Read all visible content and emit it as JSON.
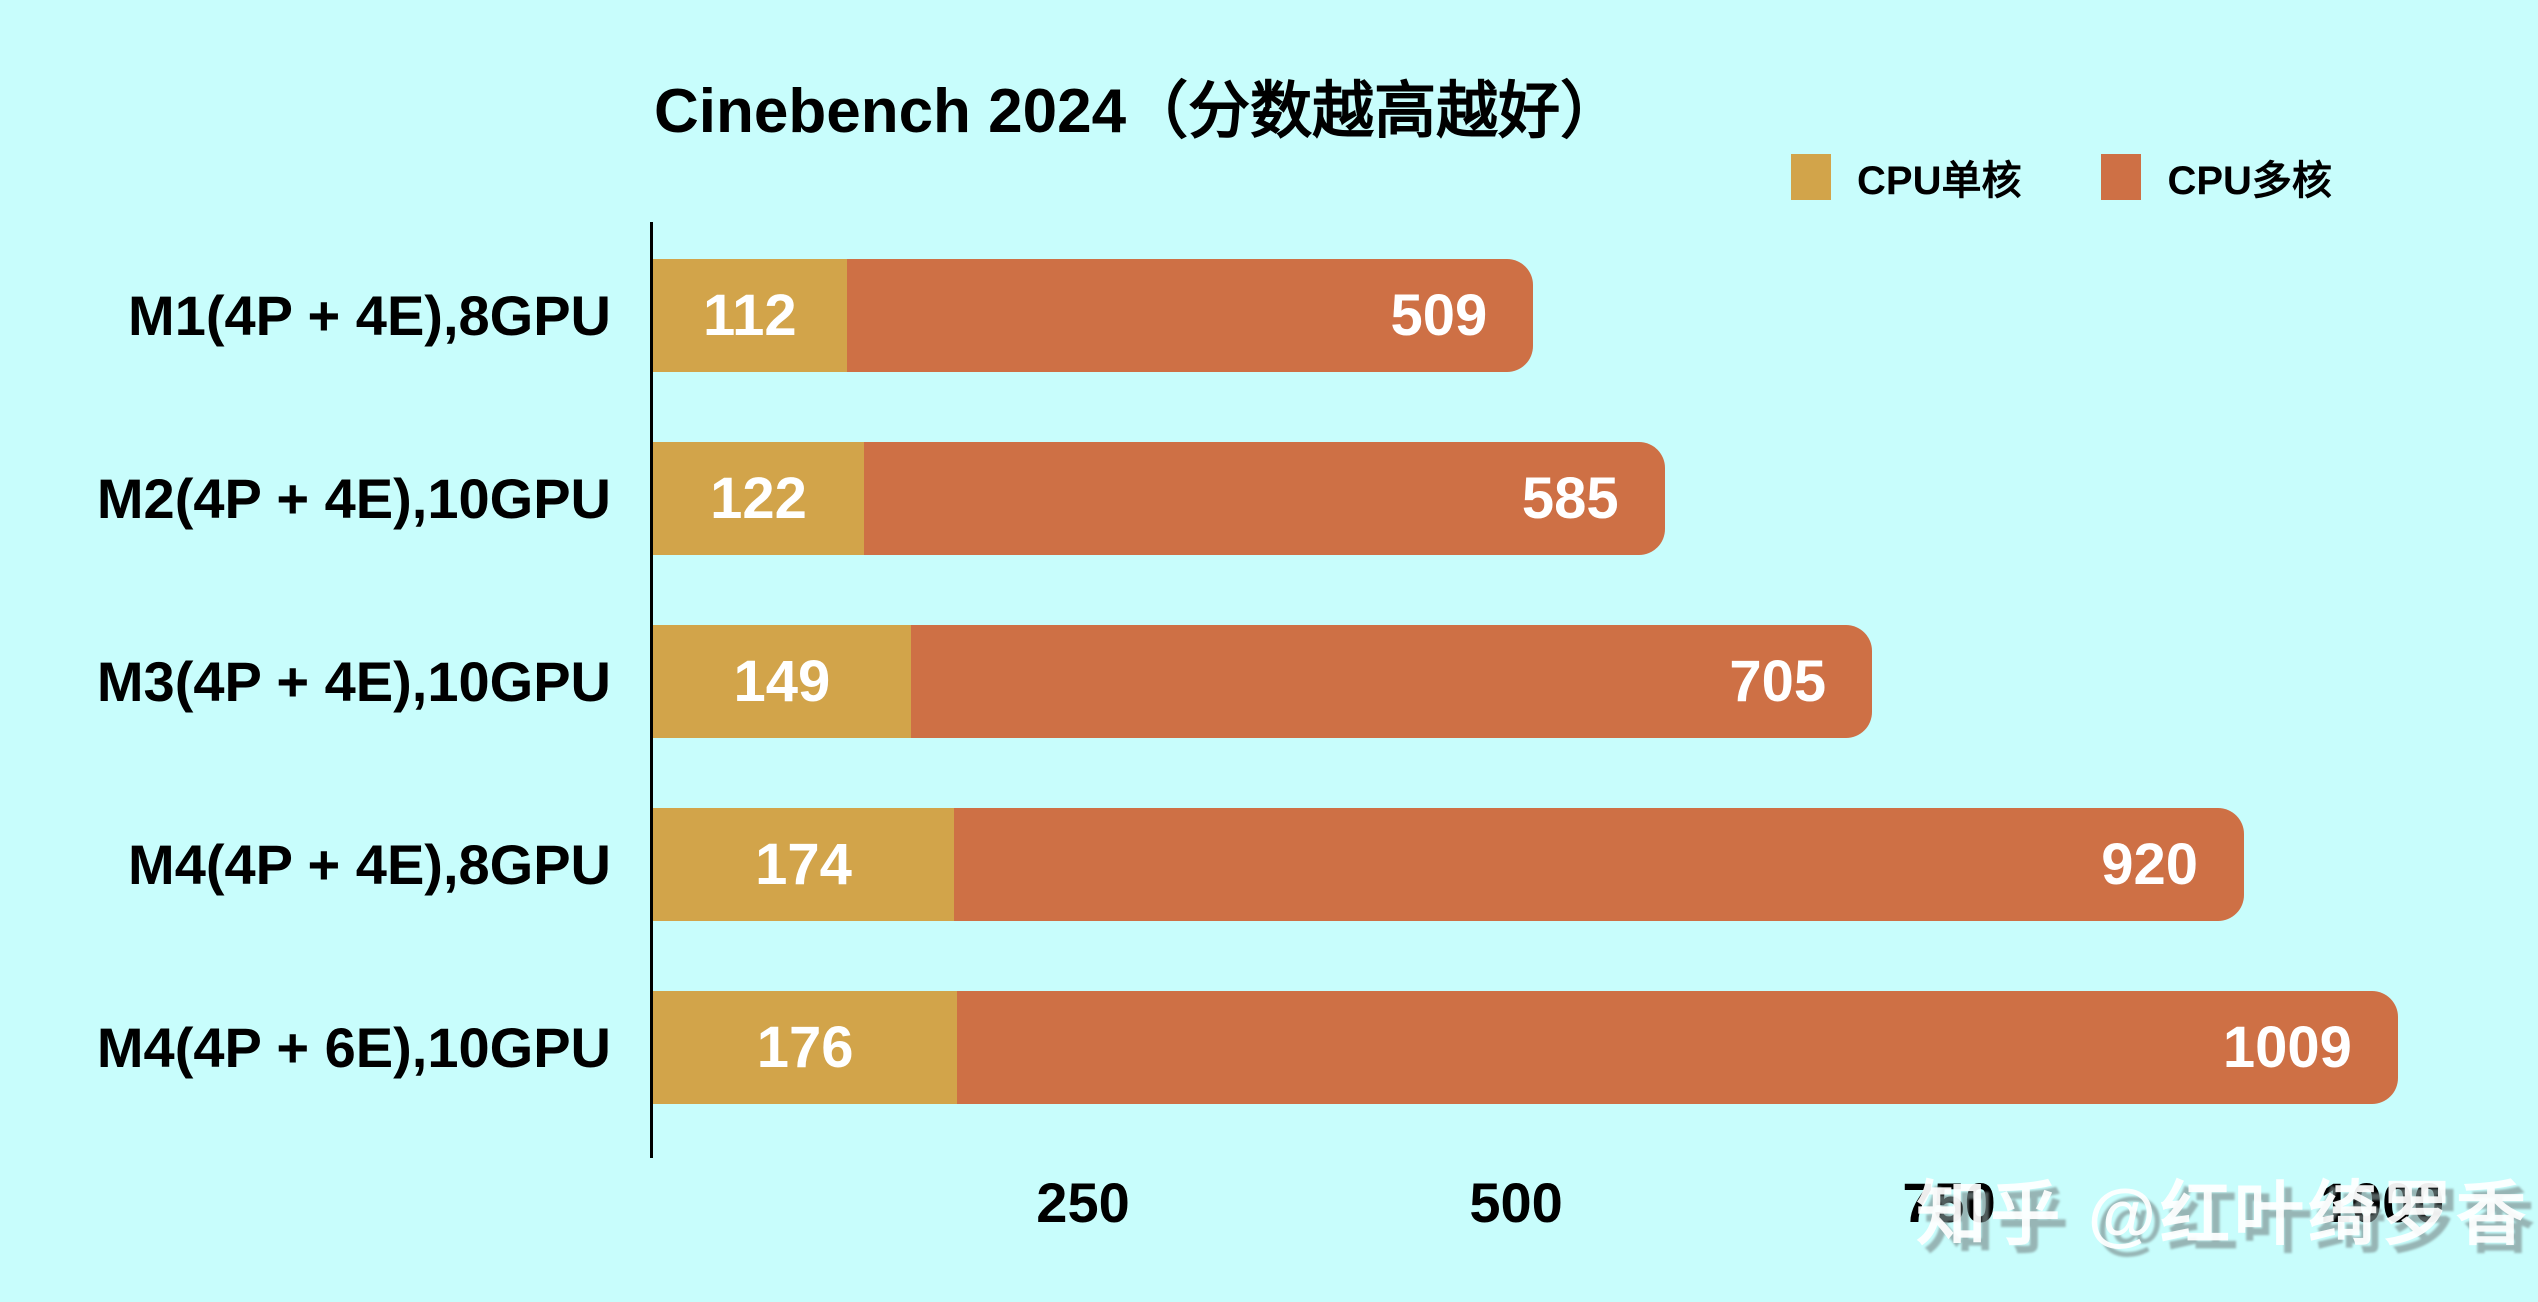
{
  "title": "Cinebench 2024（分数越高越好）",
  "legend": [
    {
      "label": "CPU单核",
      "color": "#D2A44A"
    },
    {
      "label": "CPU多核",
      "color": "#CE7045"
    }
  ],
  "chart_data": {
    "type": "bar",
    "orientation": "horizontal",
    "overlay": true,
    "title": "Cinebench 2024（分数越高越好）",
    "categories": [
      "M1(4P + 4E),8GPU",
      "M2(4P + 4E),10GPU",
      "M3(4P + 4E),10GPU",
      "M4(4P + 4E),8GPU",
      "M4(4P + 6E),10GPU"
    ],
    "series": [
      {
        "name": "CPU单核",
        "color": "#D2A44A",
        "values": [
          112,
          122,
          149,
          174,
          176
        ]
      },
      {
        "name": "CPU多核",
        "color": "#CE7045",
        "values": [
          509,
          585,
          705,
          920,
          1009
        ]
      }
    ],
    "xlabel": "",
    "ylabel": "",
    "xlim": [
      0,
      1090
    ],
    "xticks": [
      250,
      500,
      750,
      1000
    ],
    "grid": false,
    "legend_position": "top-right"
  },
  "watermark": "知乎 @红叶绮罗香",
  "colors": {
    "background": "#C8FDFC",
    "single_bar": "#D2A44A",
    "multi_bar": "#CE7045",
    "axis": "#000000",
    "bar_value_text": "#FFFFFF",
    "tick_text": "#000000",
    "watermark_text": "#FFFFFF"
  }
}
